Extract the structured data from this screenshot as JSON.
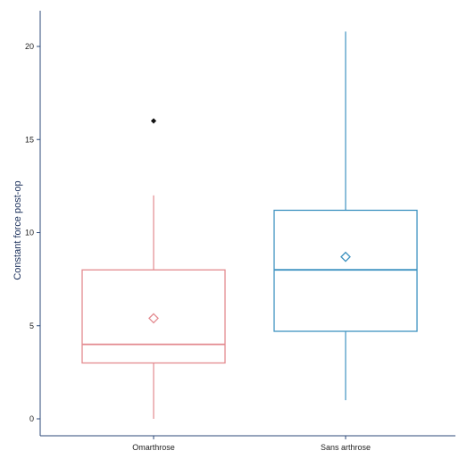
{
  "chart_data": {
    "type": "box",
    "title": "",
    "xlabel": "",
    "ylabel": "Constant force post-op",
    "ylim": [
      0,
      21
    ],
    "yticks": [
      0,
      5,
      10,
      15,
      20
    ],
    "categories": [
      "Omarthrose",
      "Sans arthrose"
    ],
    "grid": false,
    "legend": "none",
    "series": [
      {
        "category": "Omarthrose",
        "color": "#e38a8f",
        "min": 0,
        "q1": 3,
        "median": 4,
        "q3": 8,
        "max": 12,
        "mean": 5.4,
        "outliers": [
          16
        ]
      },
      {
        "category": "Sans arthrose",
        "color": "#3f93c1",
        "min": 1,
        "q1": 4.7,
        "median": 8,
        "q3": 11.2,
        "max": 20.8,
        "mean": 8.7,
        "outliers": []
      }
    ],
    "axis_color": "#2c4a7a",
    "outlier_color": "#111111"
  }
}
